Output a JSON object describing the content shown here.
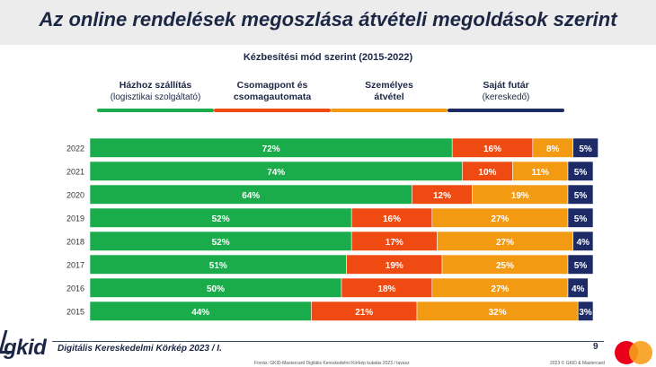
{
  "header": {
    "title": "Az online rendelések megoszlása átvételi megoldások szerint",
    "subtitle": "Kézbesítési mód szerint (2015-2022)"
  },
  "legend": [
    {
      "label": "Házhoz szállítás",
      "sub": "(logisztikai szolgáltató)",
      "color": "#1aab4b"
    },
    {
      "label": "Csomagpont és csomagautomata",
      "sub": "",
      "color": "#ef4a12"
    },
    {
      "label": "Személyes átvétel",
      "sub": "",
      "color": "#f39a13"
    },
    {
      "label": "Saját futár",
      "sub": "(kereskedő)",
      "color": "#1c2b66"
    }
  ],
  "chart_data": {
    "type": "bar",
    "orientation": "horizontal",
    "stacked": true,
    "title": "Az online rendelések megoszlása átvételi megoldások szerint",
    "subtitle": "Kézbesítési mód szerint (2015-2022)",
    "unit": "%",
    "categories": [
      "2022",
      "2021",
      "2020",
      "2019",
      "2018",
      "2017",
      "2016",
      "2015"
    ],
    "series": [
      {
        "name": "Házhoz szállítás (logisztikai szolgáltató)",
        "color": "#1aab4b",
        "values": [
          72,
          74,
          64,
          52,
          52,
          51,
          50,
          44
        ]
      },
      {
        "name": "Csomagpont és csomagautomata",
        "color": "#ef4a12",
        "values": [
          16,
          10,
          12,
          16,
          17,
          19,
          18,
          21
        ]
      },
      {
        "name": "Személyes átvétel",
        "color": "#f39a13",
        "values": [
          8,
          11,
          19,
          27,
          27,
          25,
          27,
          32
        ]
      },
      {
        "name": "Saját futár (kereskedő)",
        "color": "#1c2b66",
        "values": [
          5,
          5,
          5,
          5,
          4,
          5,
          4,
          3
        ]
      }
    ],
    "legend_position": "top",
    "grid": false
  },
  "footer": {
    "logo": "gkid",
    "title": "Digitális Kereskedelmi Körkép 2023 / I.",
    "page": "9",
    "source": "Forrás: GKID-Mastercard Digitális Kereskedelmi Körkép kutatás 2023 / tavasz",
    "copyright": "2023 © GKID & Mastercard",
    "mc_red": "#eb001b",
    "mc_orange": "#f79e1b"
  }
}
